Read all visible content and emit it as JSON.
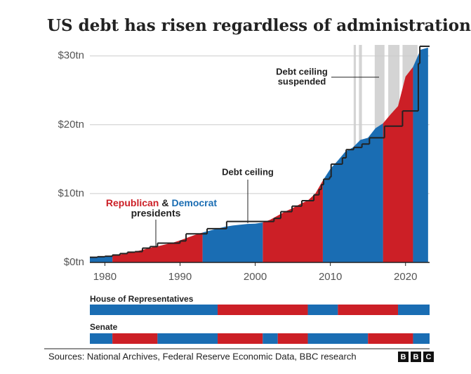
{
  "chart_data": {
    "type": "area",
    "title": "US debt has risen regardless of administration",
    "xlim": [
      1978,
      2023.2
    ],
    "xticks": [
      1980,
      1990,
      2000,
      2010,
      2020
    ],
    "ylim": [
      0,
      31.6
    ],
    "yticks": [
      {
        "value": 0,
        "label": "$0tn"
      },
      {
        "value": 10,
        "label": "$10tn"
      },
      {
        "value": 20,
        "label": "$20tn"
      },
      {
        "value": 30,
        "label": "$30tn"
      }
    ],
    "grid": true,
    "x": [
      1978,
      1979,
      1980,
      1981,
      1982,
      1983,
      1984,
      1985,
      1986,
      1987,
      1988,
      1989,
      1990,
      1991,
      1992,
      1993,
      1994,
      1995,
      1996,
      1997,
      1998,
      1999,
      2000,
      2001,
      2002,
      2003,
      2004,
      2005,
      2006,
      2007,
      2008,
      2009,
      2010,
      2011,
      2012,
      2013,
      2014,
      2015,
      2016,
      2017,
      2018,
      2019,
      2020,
      2021,
      2022,
      2023
    ],
    "series": [
      {
        "name": "Republican",
        "color": "#cc1f26",
        "values": [
          null,
          null,
          null,
          1.0,
          1.14,
          1.37,
          1.57,
          1.82,
          2.12,
          2.35,
          2.6,
          2.86,
          3.2,
          3.6,
          4.0,
          4.35,
          null,
          null,
          null,
          null,
          null,
          null,
          null,
          5.8,
          6.2,
          6.8,
          7.4,
          7.9,
          8.5,
          9.0,
          10.0,
          11.9,
          null,
          null,
          null,
          null,
          null,
          null,
          null,
          20.2,
          21.5,
          22.7,
          27.0,
          28.4,
          null,
          null
        ]
      },
      {
        "name": "Democrat",
        "color": "#1a6db3",
        "values": [
          0.78,
          0.83,
          0.91,
          1.0,
          null,
          null,
          null,
          null,
          null,
          null,
          null,
          null,
          null,
          null,
          null,
          4.35,
          4.64,
          4.92,
          5.18,
          5.37,
          5.48,
          5.6,
          5.63,
          5.8,
          null,
          null,
          null,
          null,
          null,
          null,
          null,
          11.9,
          13.6,
          14.8,
          16.1,
          16.7,
          17.8,
          18.1,
          19.5,
          20.2,
          null,
          null,
          null,
          28.4,
          30.9,
          31.2
        ]
      }
    ],
    "legend_joiner": "&",
    "legend_caption": "presidents",
    "debt_ceiling": {
      "label": "Debt ceiling",
      "x": [
        1978,
        1979,
        1980,
        1981,
        1982,
        1983,
        1984,
        1985,
        1986,
        1987,
        1990,
        1990.8,
        1993.6,
        1996.2,
        2002.5,
        2003.4,
        2004.9,
        2006.2,
        2007.8,
        2008.5,
        2008.8,
        2009.1,
        2009.9,
        2010.1,
        2011.6,
        2012.1,
        2013.1,
        2014.2,
        2015.2,
        2017.2,
        2019.6,
        2021.7,
        2021.9
      ],
      "values": [
        0.75,
        0.83,
        0.9,
        1.08,
        1.29,
        1.49,
        1.57,
        2.08,
        2.3,
        2.8,
        3.12,
        4.15,
        4.9,
        5.95,
        6.4,
        7.38,
        8.18,
        8.97,
        9.82,
        10.6,
        11.3,
        12.1,
        12.4,
        14.29,
        15.19,
        16.39,
        16.7,
        17.2,
        18.1,
        19.8,
        22.0,
        28.9,
        31.4
      ],
      "color": "#222222"
    },
    "suspended": {
      "label": [
        "Debt ceiling",
        "suspended"
      ],
      "periods": [
        [
          2013.1,
          2013.4
        ],
        [
          2013.8,
          2014.2
        ],
        [
          2015.9,
          2017.2
        ],
        [
          2017.7,
          2019.2
        ],
        [
          2019.6,
          2021.6
        ]
      ],
      "color": "#d4d4d4"
    },
    "house": {
      "label": "House of Representatives",
      "segments": [
        {
          "start": 1978,
          "end": 1995,
          "color": "#1a6db3"
        },
        {
          "start": 1995,
          "end": 2007,
          "color": "#cc1f26"
        },
        {
          "start": 2007,
          "end": 2011,
          "color": "#1a6db3"
        },
        {
          "start": 2011,
          "end": 2019,
          "color": "#cc1f26"
        },
        {
          "start": 2019,
          "end": 2023.2,
          "color": "#1a6db3"
        }
      ]
    },
    "senate": {
      "label": "Senate",
      "segments": [
        {
          "start": 1978,
          "end": 1981,
          "color": "#1a6db3"
        },
        {
          "start": 1981,
          "end": 1987,
          "color": "#cc1f26"
        },
        {
          "start": 1987,
          "end": 1995,
          "color": "#1a6db3"
        },
        {
          "start": 1995,
          "end": 2001,
          "color": "#cc1f26"
        },
        {
          "start": 2001,
          "end": 2003,
          "color": "#1a6db3"
        },
        {
          "start": 2003,
          "end": 2007,
          "color": "#cc1f26"
        },
        {
          "start": 2007,
          "end": 2015,
          "color": "#1a6db3"
        },
        {
          "start": 2015,
          "end": 2021,
          "color": "#cc1f26"
        },
        {
          "start": 2021,
          "end": 2023.2,
          "color": "#1a6db3"
        }
      ]
    },
    "source": "Sources: National Archives, Federal Reserve Economic Data, BBC research",
    "logo": [
      "B",
      "B",
      "C"
    ]
  }
}
